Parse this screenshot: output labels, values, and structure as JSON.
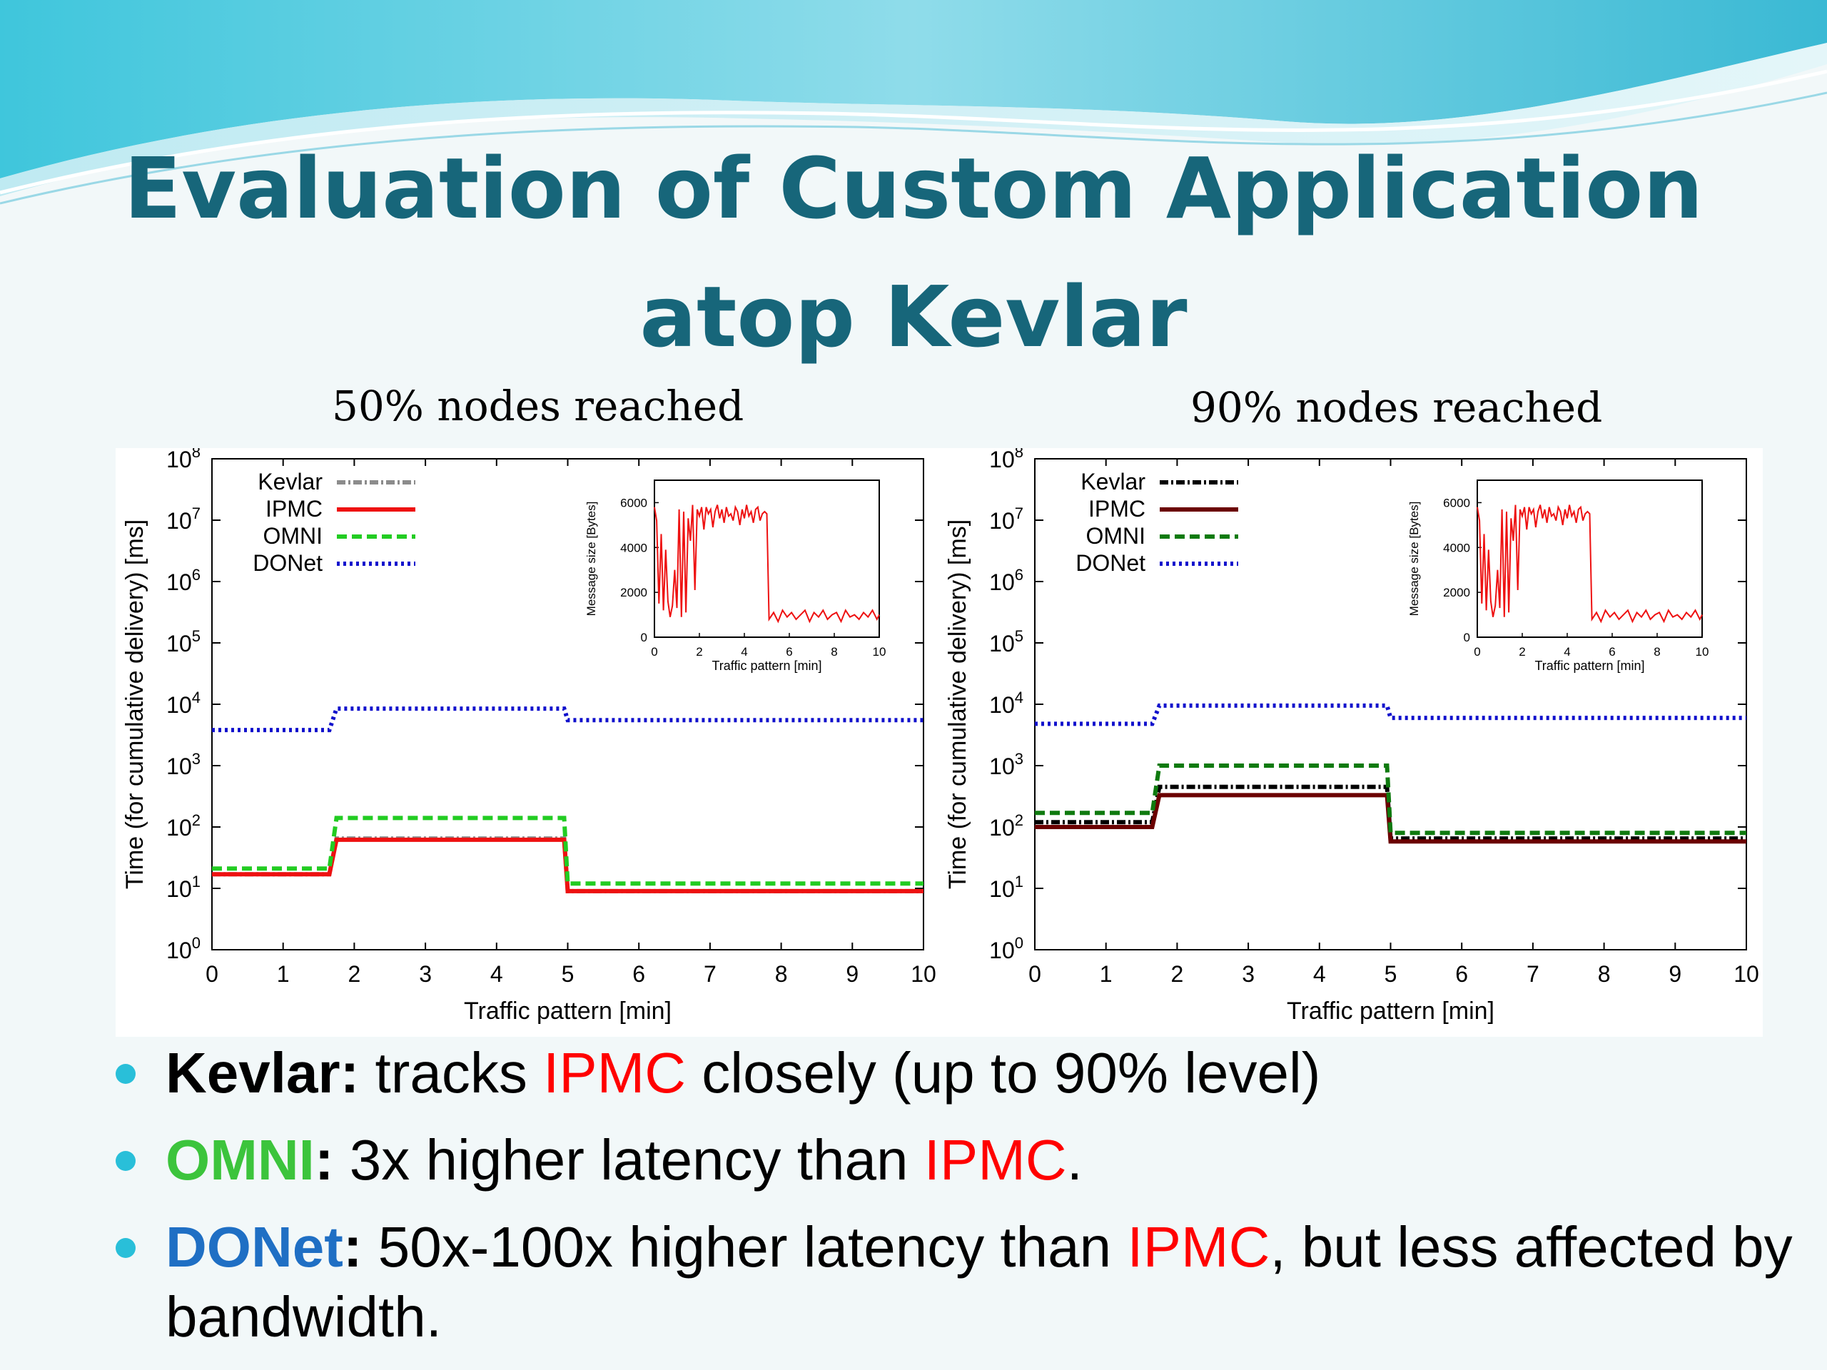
{
  "slide": {
    "title_line1": "Evaluation of Custom Application",
    "title_line2": "atop Kevlar"
  },
  "colors": {
    "title": "#17667a",
    "bullet_dot": "#29bfd9",
    "ipmc_text": "#ff0000",
    "omni_text": "#3cc43c",
    "donet_text": "#1f6fc4"
  },
  "bullets": [
    {
      "label": "Kevlar",
      "colon": ":",
      "text1": " tracks ",
      "ipmc": "IPMC",
      "text2": " closely (up to 90% level)"
    },
    {
      "label": "OMNI",
      "colon": ":",
      "text1": " 3x higher latency than ",
      "ipmc": "IPMC",
      "text2": "."
    },
    {
      "label": "DONet",
      "colon": ":",
      "text1": " 50x-100x higher latency than ",
      "ipmc": "IPMC",
      "text2": ", but less affected by bandwidth."
    }
  ],
  "chart_data": [
    {
      "type": "line",
      "caption": "50% nodes reached",
      "xlabel": "Traffic pattern [min]",
      "ylabel": "Time (for cumulative delivery) [ms]",
      "xlim": [
        0,
        10
      ],
      "ylim": [
        1,
        100000000
      ],
      "yscale": "log",
      "x_ticks": [
        "0",
        "1",
        "2",
        "3",
        "4",
        "5",
        "6",
        "7",
        "8",
        "9",
        "10"
      ],
      "y_tick_exponents": [
        "0",
        "1",
        "2",
        "3",
        "4",
        "5",
        "6",
        "7",
        "8"
      ],
      "y_tick_base": "10",
      "legend_position": "top-left",
      "x": [
        0,
        1.65,
        1.75,
        4.95,
        5.0,
        10
      ],
      "series": [
        {
          "name": "Kevlar",
          "color": "#8c8c8c",
          "dash": "dash-dot",
          "values": [
            17,
            17,
            65,
            65,
            9,
            9
          ]
        },
        {
          "name": "IPMC",
          "color": "#ee1111",
          "dash": "solid",
          "values": [
            17,
            17,
            62,
            62,
            9,
            9
          ]
        },
        {
          "name": "OMNI",
          "color": "#22cc22",
          "dash": "dashed",
          "values": [
            21,
            21,
            140,
            140,
            12,
            12
          ]
        },
        {
          "name": "DONet",
          "color": "#1111cc",
          "dash": "dotted",
          "values": [
            3800,
            3800,
            8500,
            8500,
            5500,
            5500
          ]
        }
      ],
      "inset": {
        "xlabel": "Traffic pattern [min]",
        "ylabel": "Message size [Bytes]",
        "xlim": [
          0,
          10
        ],
        "ylim": [
          0,
          7000
        ],
        "x_ticks": [
          "0",
          "2",
          "4",
          "6",
          "8",
          "10"
        ],
        "y_ticks": [
          "0",
          "2000",
          "4000",
          "6000"
        ],
        "color": "#ee1111",
        "x": [
          0.0,
          0.1,
          0.2,
          0.3,
          0.4,
          0.5,
          0.6,
          0.7,
          0.8,
          0.9,
          1.0,
          1.1,
          1.2,
          1.3,
          1.4,
          1.5,
          1.6,
          1.7,
          1.8,
          1.9,
          2.0,
          2.1,
          2.2,
          2.3,
          2.4,
          2.5,
          2.6,
          2.7,
          2.8,
          2.9,
          3.0,
          3.1,
          3.2,
          3.3,
          3.4,
          3.5,
          3.6,
          3.7,
          3.8,
          3.9,
          4.0,
          4.1,
          4.2,
          4.3,
          4.4,
          4.5,
          4.6,
          4.7,
          4.8,
          4.9,
          5.0,
          5.1,
          5.3,
          5.5,
          5.7,
          5.9,
          6.1,
          6.3,
          6.5,
          6.7,
          6.9,
          7.1,
          7.3,
          7.5,
          7.7,
          7.9,
          8.1,
          8.3,
          8.5,
          8.7,
          8.9,
          9.1,
          9.3,
          9.5,
          9.7,
          9.9,
          10.0
        ],
        "values": [
          5800,
          5200,
          1500,
          4600,
          1200,
          3900,
          1600,
          900,
          1400,
          3000,
          1300,
          5700,
          900,
          5600,
          1100,
          5300,
          4300,
          5900,
          2100,
          5700,
          5400,
          5800,
          4800,
          5800,
          5500,
          5700,
          4900,
          5600,
          5900,
          5300,
          5700,
          5100,
          5800,
          5400,
          5500,
          5200,
          5800,
          5600,
          5000,
          5700,
          5300,
          5900,
          5400,
          5600,
          5100,
          5700,
          5800,
          5200,
          5500,
          5600,
          5500,
          800,
          1100,
          700,
          1200,
          900,
          1100,
          800,
          1000,
          1200,
          700,
          1100,
          900,
          1200,
          800,
          1000,
          1100,
          700,
          1200,
          900,
          1000,
          800,
          1100,
          900,
          1200,
          800,
          1000
        ]
      }
    },
    {
      "type": "line",
      "caption": "90% nodes reached",
      "xlabel": "Traffic pattern [min]",
      "ylabel": "Time (for cumulative delivery) [ms]",
      "xlim": [
        0,
        10
      ],
      "ylim": [
        1,
        100000000
      ],
      "yscale": "log",
      "x_ticks": [
        "0",
        "1",
        "2",
        "3",
        "4",
        "5",
        "6",
        "7",
        "8",
        "9",
        "10"
      ],
      "y_tick_exponents": [
        "0",
        "1",
        "2",
        "3",
        "4",
        "5",
        "6",
        "7",
        "8"
      ],
      "y_tick_base": "10",
      "legend_position": "top-left",
      "x": [
        0,
        1.65,
        1.75,
        4.95,
        5.0,
        10
      ],
      "series": [
        {
          "name": "Kevlar",
          "color": "#000000",
          "dash": "dash-dot",
          "values": [
            120,
            120,
            450,
            450,
            65,
            65
          ]
        },
        {
          "name": "IPMC",
          "color": "#6b0000",
          "dash": "solid",
          "values": [
            100,
            100,
            330,
            330,
            58,
            58
          ]
        },
        {
          "name": "OMNI",
          "color": "#0f7a0f",
          "dash": "dashed",
          "values": [
            170,
            170,
            1000,
            1000,
            80,
            80
          ]
        },
        {
          "name": "DONet",
          "color": "#1111cc",
          "dash": "dotted",
          "values": [
            4800,
            4800,
            9500,
            9500,
            6000,
            6000
          ]
        }
      ],
      "inset": {
        "xlabel": "Traffic pattern [min]",
        "ylabel": "Message size [Bytes]",
        "xlim": [
          0,
          10
        ],
        "ylim": [
          0,
          7000
        ],
        "x_ticks": [
          "0",
          "2",
          "4",
          "6",
          "8",
          "10"
        ],
        "y_ticks": [
          "0",
          "2000",
          "4000",
          "6000"
        ],
        "color": "#ee1111",
        "x": [
          0.0,
          0.1,
          0.2,
          0.3,
          0.4,
          0.5,
          0.6,
          0.7,
          0.8,
          0.9,
          1.0,
          1.1,
          1.2,
          1.3,
          1.4,
          1.5,
          1.6,
          1.7,
          1.8,
          1.9,
          2.0,
          2.1,
          2.2,
          2.3,
          2.4,
          2.5,
          2.6,
          2.7,
          2.8,
          2.9,
          3.0,
          3.1,
          3.2,
          3.3,
          3.4,
          3.5,
          3.6,
          3.7,
          3.8,
          3.9,
          4.0,
          4.1,
          4.2,
          4.3,
          4.4,
          4.5,
          4.6,
          4.7,
          4.8,
          4.9,
          5.0,
          5.1,
          5.3,
          5.5,
          5.7,
          5.9,
          6.1,
          6.3,
          6.5,
          6.7,
          6.9,
          7.1,
          7.3,
          7.5,
          7.7,
          7.9,
          8.1,
          8.3,
          8.5,
          8.7,
          8.9,
          9.1,
          9.3,
          9.5,
          9.7,
          9.9,
          10.0
        ],
        "values": [
          5800,
          5200,
          1500,
          4600,
          1200,
          3900,
          1600,
          900,
          1400,
          3000,
          1300,
          5700,
          900,
          5600,
          1100,
          5300,
          4300,
          5900,
          2100,
          5700,
          5400,
          5800,
          4800,
          5800,
          5500,
          5700,
          4900,
          5600,
          5900,
          5300,
          5700,
          5100,
          5800,
          5400,
          5500,
          5200,
          5800,
          5600,
          5000,
          5700,
          5300,
          5900,
          5400,
          5600,
          5100,
          5700,
          5800,
          5200,
          5500,
          5600,
          5500,
          800,
          1100,
          700,
          1200,
          900,
          1100,
          800,
          1000,
          1200,
          700,
          1100,
          900,
          1200,
          800,
          1000,
          1100,
          700,
          1200,
          900,
          1000,
          800,
          1100,
          900,
          1200,
          800,
          1000
        ]
      }
    }
  ]
}
